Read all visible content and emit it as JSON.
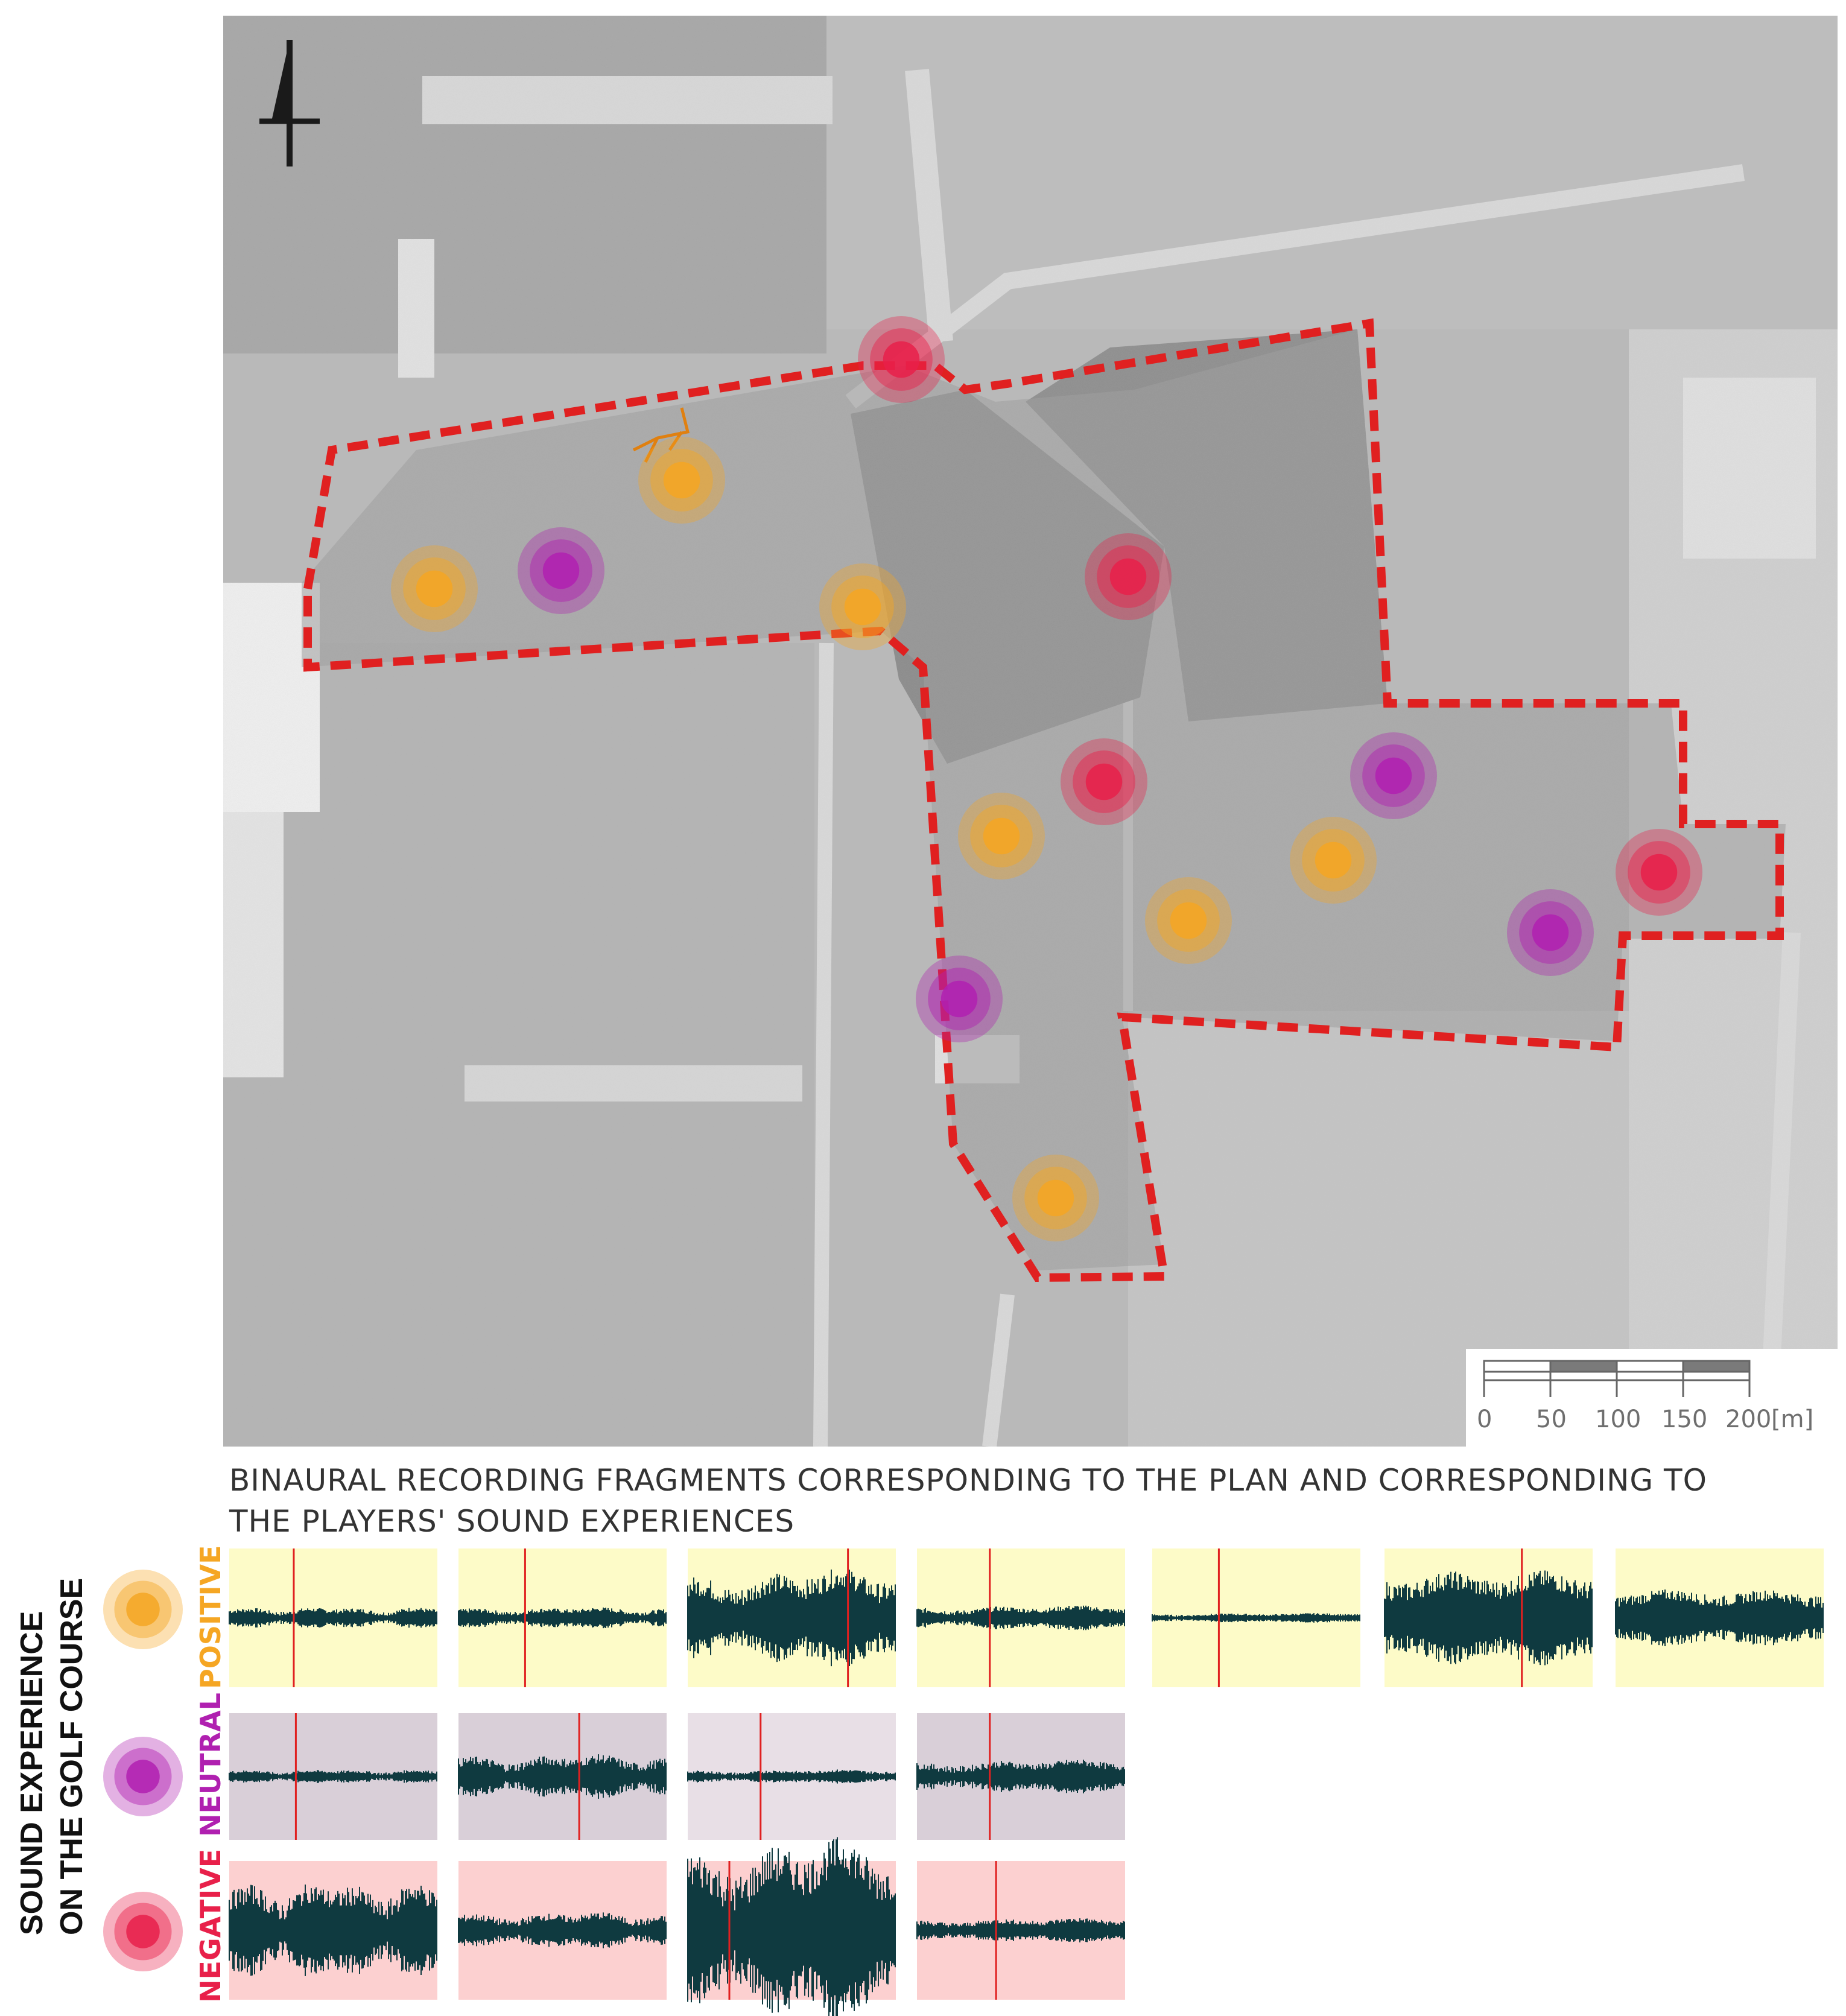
{
  "title": {
    "line1": "BINAURAL RECORDING FRAGMENTS CORRESPONDING TO THE PLAN AND CORRESPONDING TO",
    "line2": "THE PLAYERS' SOUND EXPERIENCES"
  },
  "side_label": {
    "line1": "SOUND EXPERIENCE",
    "line2": "ON THE GOLF COURSE"
  },
  "categories": [
    {
      "key": "positive",
      "label": "POSITIVE",
      "color": "#f5a623",
      "panel_color": "#fdfbc8"
    },
    {
      "key": "neutral",
      "label": "NEUTRAL",
      "color": "#b020b0",
      "panel_color": "#d9cfd8"
    },
    {
      "key": "negative",
      "label": "NEGATIVE",
      "color": "#e8204a",
      "panel_color": "#fcd0d0"
    }
  ],
  "scale_bar": {
    "ticks": [
      "0",
      "50",
      "100",
      "150",
      "200"
    ],
    "unit": "[m]"
  },
  "north_arrow": "north-arrow-icon",
  "boundary": {
    "color": "#e02020",
    "style": "dashed"
  },
  "recording_points": [
    {
      "category": "negative"
    },
    {
      "category": "positive"
    },
    {
      "category": "positive"
    },
    {
      "category": "neutral"
    },
    {
      "category": "positive"
    },
    {
      "category": "negative"
    },
    {
      "category": "negative"
    },
    {
      "category": "positive"
    },
    {
      "category": "neutral"
    },
    {
      "category": "positive"
    },
    {
      "category": "positive"
    },
    {
      "category": "negative"
    },
    {
      "category": "neutral"
    },
    {
      "category": "neutral"
    },
    {
      "category": "positive"
    }
  ],
  "waveforms": {
    "positive_count": 7,
    "neutral_count": 4,
    "negative_count": 4
  }
}
